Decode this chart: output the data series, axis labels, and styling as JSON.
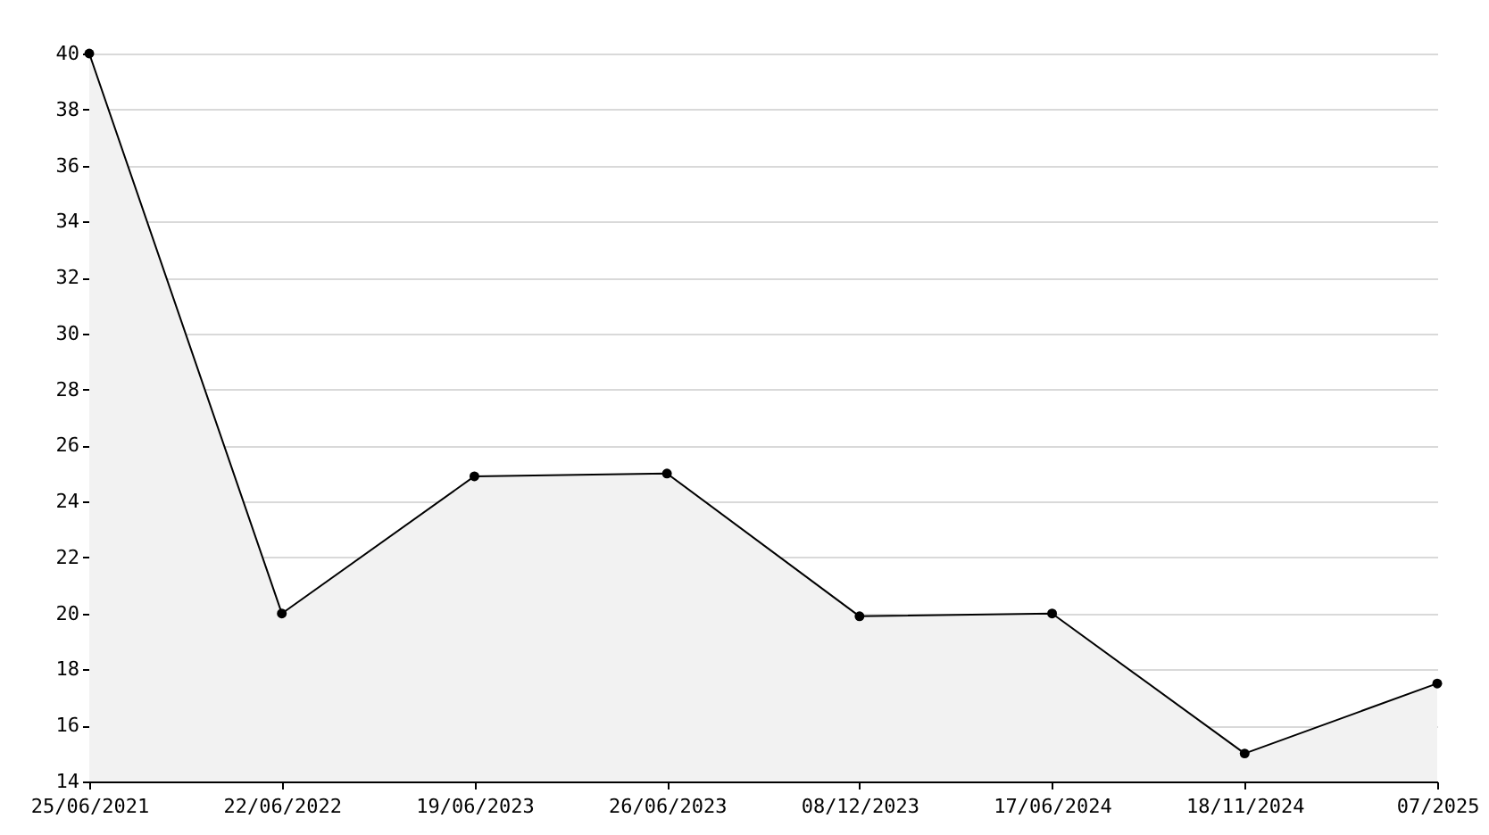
{
  "chart_data": {
    "type": "area",
    "categories": [
      "25/06/2021",
      "22/06/2022",
      "19/06/2023",
      "26/06/2023",
      "08/12/2023",
      "17/06/2024",
      "18/11/2024",
      "07/2025"
    ],
    "series": [
      {
        "color": "#000000",
        "values": [
          40,
          20,
          24.9,
          25,
          19.9,
          20,
          15,
          17.5
        ]
      }
    ],
    "ylim": [
      14,
      40
    ],
    "yticks": [
      14,
      16,
      18,
      20,
      22,
      24,
      26,
      28,
      30,
      32,
      34,
      36,
      38,
      40
    ],
    "grid": "y",
    "marker": "circle",
    "legend": false
  }
}
